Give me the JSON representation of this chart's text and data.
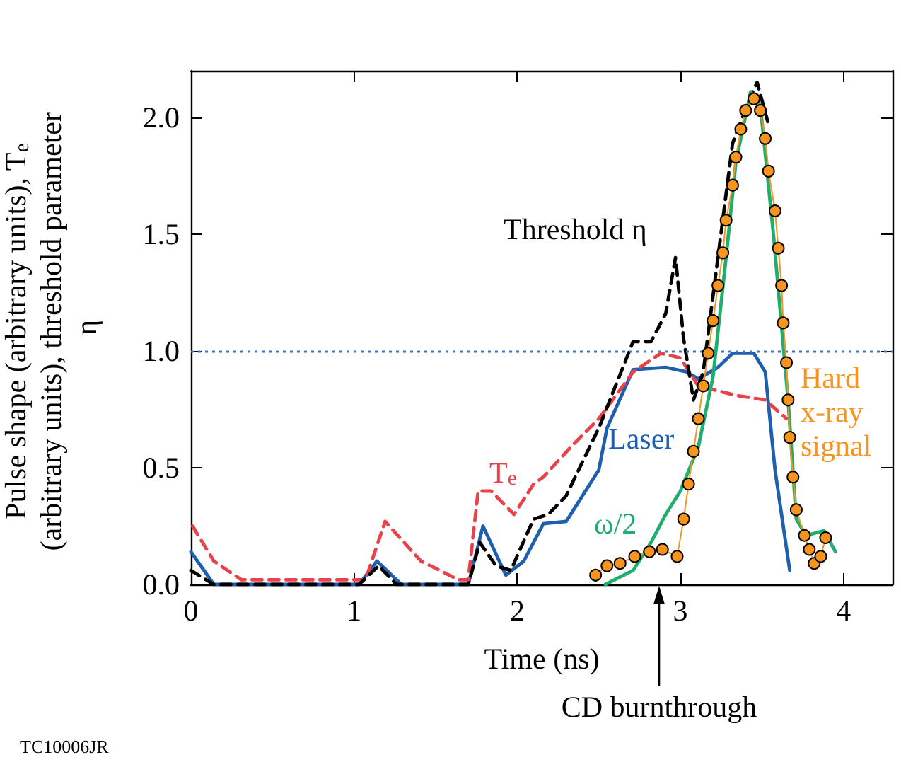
{
  "chart_data": {
    "type": "line",
    "xlabel": "Time (ns)",
    "ylabel": "Pulse shape (arbitrary units), T$_{e}$ (arbitrary units), threshold parameter η",
    "xlim": [
      0,
      4.3
    ],
    "xticks": [
      0,
      1,
      2,
      3,
      4
    ],
    "ylim": [
      0,
      2.2
    ],
    "yticks": [
      {
        "value": 0,
        "label": "0.0"
      },
      {
        "value": 0.5,
        "label": "0.5"
      },
      {
        "value": 1,
        "label": "1.0"
      },
      {
        "value": 1.5,
        "label": "1.5"
      },
      {
        "value": 2,
        "label": "2.0"
      }
    ],
    "marker": "none",
    "series": [
      {
        "name": "Laser",
        "color": "#1f5fae",
        "line_style": "solid",
        "x": [
          0,
          0.14,
          1.03,
          1.14,
          1.29,
          1.7,
          1.79,
          1.93,
          2.04,
          2.16,
          2.3,
          2.5,
          2.55,
          2.71,
          2.91,
          3.04,
          3.11,
          3.23,
          3.32,
          3.45,
          3.52,
          3.58,
          3.67
        ],
        "values": [
          0.14,
          0,
          0,
          0.1,
          0,
          0,
          0.25,
          0.04,
          0.1,
          0.26,
          0.27,
          0.49,
          0.67,
          0.92,
          0.93,
          0.91,
          0.88,
          0.93,
          0.99,
          0.99,
          0.91,
          0.49,
          0.06
        ]
      },
      {
        "name": "T$_{e}$",
        "color": "#e8434a",
        "line_style": "dashed",
        "x": [
          0.01,
          0.14,
          0.31,
          1.07,
          1.19,
          1.41,
          1.64,
          1.7,
          1.76,
          1.84,
          1.98,
          2.1,
          2.16,
          2.33,
          2.5,
          2.71,
          2.88,
          3.0,
          3.11,
          3.34,
          3.52,
          3.65
        ],
        "values": [
          0.25,
          0.1,
          0.02,
          0.02,
          0.27,
          0.1,
          0.02,
          0.02,
          0.4,
          0.4,
          0.3,
          0.43,
          0.46,
          0.59,
          0.71,
          0.91,
          0.99,
          0.97,
          0.85,
          0.81,
          0.79,
          0.71
        ]
      },
      {
        "name": "Threshold η",
        "color": "#000000",
        "line_style": "dashed",
        "x": [
          0,
          0.14,
          1.03,
          1.15,
          1.26,
          1.7,
          1.77,
          1.87,
          1.96,
          2.1,
          2.19,
          2.3,
          2.5,
          2.71,
          2.82,
          2.91,
          2.97,
          3.02,
          3.08,
          3.14,
          3.23,
          3.32,
          3.43,
          3.47,
          3.54
        ],
        "values": [
          0.06,
          0,
          0,
          0.08,
          0,
          0,
          0.18,
          0.08,
          0.06,
          0.28,
          0.3,
          0.38,
          0.67,
          1.04,
          1.04,
          1.16,
          1.4,
          1.05,
          0.79,
          0.91,
          1.4,
          1.89,
          2.09,
          2.15,
          1.97
        ]
      },
      {
        "name": "ω/2",
        "color": "#1fae6e",
        "line_style": "solid",
        "x": [
          2.54,
          2.71,
          2.82,
          2.91,
          3.0,
          3.11,
          3.2,
          3.28,
          3.34,
          3.43,
          3.49,
          3.57,
          3.66,
          3.71,
          3.77,
          3.88,
          3.95
        ],
        "values": [
          0,
          0.06,
          0.18,
          0.3,
          0.4,
          0.59,
          0.89,
          1.4,
          1.81,
          2.11,
          2.05,
          1.5,
          0.79,
          0.28,
          0.21,
          0.23,
          0.14
        ]
      },
      {
        "name": "Hard x-ray signal",
        "color": "#f7941d",
        "line_style": "solid",
        "marker": "circle",
        "x": [
          2.48,
          2.55,
          2.63,
          2.72,
          2.81,
          2.89,
          2.98,
          3.02,
          3.05,
          3.08,
          3.11,
          3.14,
          3.17,
          3.2,
          3.23,
          3.26,
          3.28,
          3.32,
          3.34,
          3.37,
          3.4,
          3.45,
          3.49,
          3.52,
          3.54,
          3.58,
          3.6,
          3.62,
          3.63,
          3.65,
          3.66,
          3.67,
          3.69,
          3.71,
          3.76,
          3.79,
          3.82,
          3.86,
          3.89
        ],
        "values": [
          0.04,
          0.08,
          0.09,
          0.12,
          0.14,
          0.15,
          0.12,
          0.28,
          0.43,
          0.57,
          0.71,
          0.85,
          0.99,
          1.13,
          1.28,
          1.42,
          1.56,
          1.71,
          1.83,
          1.95,
          2.03,
          2.08,
          2.03,
          1.91,
          1.77,
          1.6,
          1.44,
          1.28,
          1.12,
          0.95,
          0.79,
          0.63,
          0.46,
          0.32,
          0.21,
          0.15,
          0.09,
          0.12,
          0.2
        ]
      }
    ],
    "ref_lines": [
      {
        "axis": "y",
        "value": 1,
        "color": "#3a78c4",
        "line_style": "dotted"
      }
    ],
    "annotations": [
      "CD burnthrough",
      "TC10006JR"
    ]
  }
}
